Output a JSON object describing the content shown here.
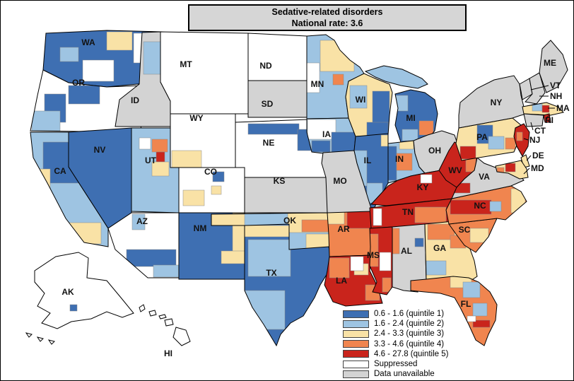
{
  "title": {
    "line1": "Sedative-related disorders",
    "line2": "National rate: 3.6"
  },
  "legend": {
    "items": [
      {
        "key": "q1",
        "label": "0.6 - 1.6 (quintile 1)",
        "color": "#3E6FB2"
      },
      {
        "key": "q2",
        "label": "1.6 - 2.4 (quintile 2)",
        "color": "#9EC4E2"
      },
      {
        "key": "q3",
        "label": "2.4 - 3.3 (quintile 3)",
        "color": "#F9E2A6"
      },
      {
        "key": "q4",
        "label": "3.3 - 4.6 (quintile 4)",
        "color": "#F0854F"
      },
      {
        "key": "q5",
        "label": "4.6 - 27.8 (quintile 5)",
        "color": "#C9241C"
      },
      {
        "key": "suppressed",
        "label": "Suppressed",
        "color": "#FFFFFF"
      },
      {
        "key": "unavailable",
        "label": "Data unavailable",
        "color": "#D3D3D3"
      }
    ]
  },
  "chart_data": {
    "type": "heatmap",
    "title": "Sedative-related disorders",
    "subtitle": "National rate: 3.6",
    "legend_position": "bottom-right",
    "quintile_bins": [
      "0.6 - 1.6",
      "1.6 - 2.4",
      "2.4 - 3.3",
      "3.3 - 4.6",
      "4.6 - 27.8"
    ],
    "special_categories": [
      "Suppressed",
      "Data unavailable"
    ],
    "national_rate": 3.6
  },
  "map": {
    "states": [
      {
        "id": "WA",
        "label": "WA",
        "quintile": "q1",
        "accents": [
          "q3",
          "suppressed",
          "q2"
        ]
      },
      {
        "id": "OR",
        "label": "OR",
        "quintile": "suppressed",
        "accents": [
          "q1",
          "q2"
        ]
      },
      {
        "id": "CA",
        "label": "CA",
        "quintile": "q2",
        "accents": [
          "q1",
          "q3"
        ]
      },
      {
        "id": "NV",
        "label": "NV",
        "quintile": "q1",
        "accents": []
      },
      {
        "id": "ID",
        "label": "ID",
        "quintile": "unavailable",
        "accents": [
          "q2"
        ]
      },
      {
        "id": "MT",
        "label": "MT",
        "quintile": "suppressed",
        "accents": []
      },
      {
        "id": "WY",
        "label": "WY",
        "quintile": "suppressed",
        "accents": [
          "q3"
        ]
      },
      {
        "id": "UT",
        "label": "UT",
        "quintile": "q2",
        "accents": [
          "q4",
          "q5",
          "q3",
          "suppressed"
        ]
      },
      {
        "id": "CO",
        "label": "CO",
        "quintile": "suppressed",
        "accents": [
          "q3",
          "q1"
        ]
      },
      {
        "id": "AZ",
        "label": "AZ",
        "quintile": "suppressed",
        "accents": [
          "q1",
          "q2"
        ]
      },
      {
        "id": "NM",
        "label": "NM",
        "quintile": "q1",
        "accents": [
          "q3"
        ]
      },
      {
        "id": "ND",
        "label": "ND",
        "quintile": "suppressed",
        "accents": []
      },
      {
        "id": "SD",
        "label": "SD",
        "quintile": "unavailable",
        "accents": []
      },
      {
        "id": "NE",
        "label": "NE",
        "quintile": "suppressed",
        "accents": [
          "q1"
        ]
      },
      {
        "id": "KS",
        "label": "KS",
        "quintile": "unavailable",
        "accents": []
      },
      {
        "id": "OK",
        "label": "OK",
        "quintile": "q2",
        "accents": [
          "q3",
          "q4"
        ]
      },
      {
        "id": "TX",
        "label": "TX",
        "quintile": "q1",
        "accents": [
          "q3",
          "q2"
        ]
      },
      {
        "id": "MN",
        "label": "MN",
        "quintile": "q2",
        "accents": [
          "q3",
          "q4",
          "suppressed"
        ]
      },
      {
        "id": "IA",
        "label": "IA",
        "quintile": "q2",
        "accents": [
          "suppressed",
          "q1"
        ]
      },
      {
        "id": "MO",
        "label": "MO",
        "quintile": "unavailable",
        "accents": []
      },
      {
        "id": "AR",
        "label": "AR",
        "quintile": "q4",
        "accents": [
          "q5",
          "q3"
        ]
      },
      {
        "id": "LA",
        "label": "LA",
        "quintile": "q5",
        "accents": [
          "q4",
          "q3",
          "suppressed"
        ]
      },
      {
        "id": "WI",
        "label": "WI",
        "quintile": "q3",
        "accents": [
          "q1",
          "q2"
        ]
      },
      {
        "id": "IL",
        "label": "IL",
        "quintile": "q1",
        "accents": [
          "q2",
          "q3"
        ]
      },
      {
        "id": "MI",
        "label": "MI",
        "quintile": "q1",
        "accents": [
          "q2",
          "q4"
        ]
      },
      {
        "id": "IN",
        "label": "IN",
        "quintile": "q2",
        "accents": [
          "q1",
          "q4",
          "q3"
        ]
      },
      {
        "id": "OH",
        "label": "OH",
        "quintile": "unavailable",
        "accents": []
      },
      {
        "id": "KY",
        "label": "KY",
        "quintile": "q5",
        "accents": [
          "suppressed"
        ]
      },
      {
        "id": "TN",
        "label": "TN",
        "quintile": "q5",
        "accents": [
          "q4",
          "suppressed"
        ]
      },
      {
        "id": "MS",
        "label": "MS",
        "quintile": "q5",
        "accents": [
          "q4",
          "suppressed"
        ]
      },
      {
        "id": "AL",
        "label": "AL",
        "quintile": "unavailable",
        "accents": [
          "q4",
          "q1"
        ]
      },
      {
        "id": "GA",
        "label": "GA",
        "quintile": "q3",
        "accents": [
          "q4",
          "q2"
        ]
      },
      {
        "id": "SC",
        "label": "SC",
        "quintile": "q4",
        "accents": [
          "q3"
        ]
      },
      {
        "id": "NC",
        "label": "NC",
        "quintile": "q4",
        "accents": [
          "q5",
          "q2",
          "q3"
        ]
      },
      {
        "id": "VA",
        "label": "VA",
        "quintile": "unavailable",
        "accents": [
          "q5"
        ]
      },
      {
        "id": "WV",
        "label": "WV",
        "quintile": "q5",
        "accents": [
          "q4"
        ]
      },
      {
        "id": "FL",
        "label": "FL",
        "quintile": "q4",
        "accents": [
          "q3",
          "q2",
          "q5",
          "suppressed"
        ]
      },
      {
        "id": "PA",
        "label": "PA",
        "quintile": "q3",
        "accents": [
          "q1",
          "q2",
          "q5",
          "q4"
        ]
      },
      {
        "id": "NY",
        "label": "NY",
        "quintile": "unavailable",
        "accents": []
      },
      {
        "id": "VT",
        "label": "VT",
        "quintile": "unavailable",
        "accents": []
      },
      {
        "id": "NH",
        "label": "NH",
        "quintile": "unavailable",
        "accents": []
      },
      {
        "id": "ME",
        "label": "ME",
        "quintile": "unavailable",
        "accents": []
      },
      {
        "id": "MA",
        "label": "MA",
        "quintile": "q3",
        "accents": [
          "q2",
          "q5"
        ]
      },
      {
        "id": "CT",
        "label": "CT",
        "quintile": "unavailable",
        "accents": []
      },
      {
        "id": "RI",
        "label": "RI",
        "quintile": "q5",
        "accents": []
      },
      {
        "id": "NJ",
        "label": "NJ",
        "quintile": "q5",
        "accents": [
          "q4"
        ]
      },
      {
        "id": "DE",
        "label": "DE",
        "quintile": "q3",
        "accents": []
      },
      {
        "id": "MD",
        "label": "MD",
        "quintile": "q3",
        "accents": [
          "q5",
          "q4"
        ]
      },
      {
        "id": "AK",
        "label": "AK",
        "quintile": "suppressed",
        "accents": [
          "q1"
        ]
      },
      {
        "id": "HI",
        "label": "HI",
        "quintile": "suppressed",
        "accents": []
      }
    ]
  }
}
